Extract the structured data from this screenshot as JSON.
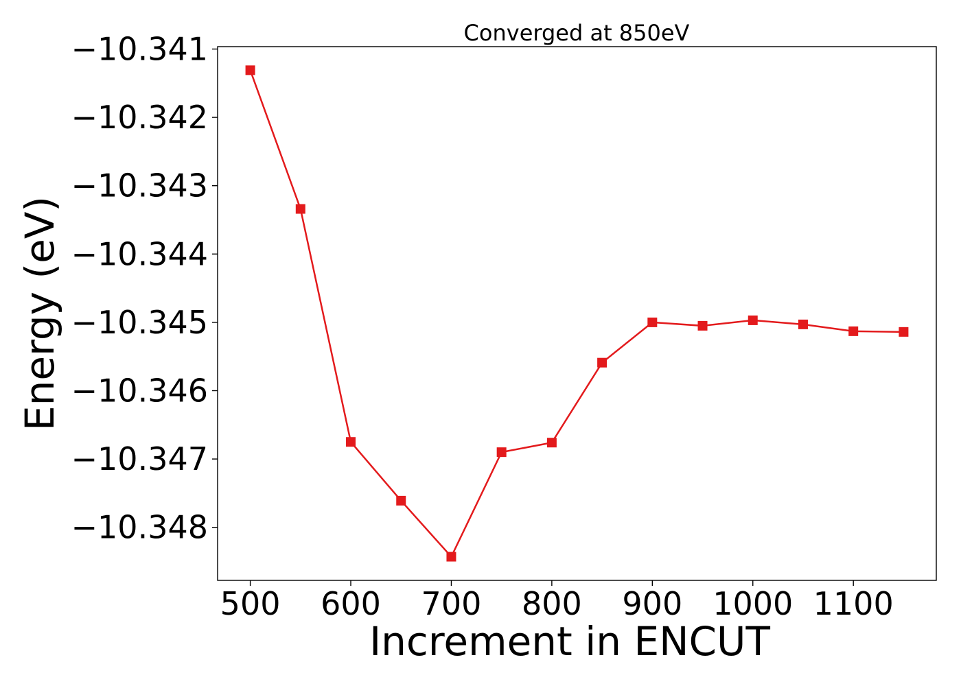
{
  "chart_data": {
    "type": "line",
    "title": "Converged at 850eV",
    "xlabel": "Increment in ENCUT",
    "ylabel": "Energy (eV)",
    "x": [
      500,
      550,
      600,
      650,
      700,
      750,
      800,
      850,
      900,
      950,
      1000,
      1050,
      1100,
      1150
    ],
    "series": [
      {
        "values": [
          -10.34131,
          -10.34334,
          -10.34675,
          -10.34761,
          -10.34843,
          -10.3469,
          -10.34676,
          -10.34559,
          -10.345,
          -10.34505,
          -10.34497,
          -10.34503,
          -10.34513,
          -10.34514
        ],
        "color": "#e31a1c",
        "marker": "square"
      }
    ],
    "xlim": [
      467.5,
      1182.5
    ],
    "ylim": [
      -10.348776,
      -10.340965
    ],
    "xticks": [
      500,
      600,
      700,
      800,
      900,
      1000,
      1100
    ],
    "xtick_labels": [
      "500",
      "600",
      "700",
      "800",
      "900",
      "1000",
      "1100"
    ],
    "yticks": [
      -10.341,
      -10.342,
      -10.343,
      -10.344,
      -10.345,
      -10.346,
      -10.347,
      -10.348
    ],
    "ytick_labels": [
      "−10.341",
      "−10.342",
      "−10.343",
      "−10.344",
      "−10.345",
      "−10.346",
      "−10.347",
      "−10.348"
    ],
    "grid": false,
    "legend": "none"
  }
}
